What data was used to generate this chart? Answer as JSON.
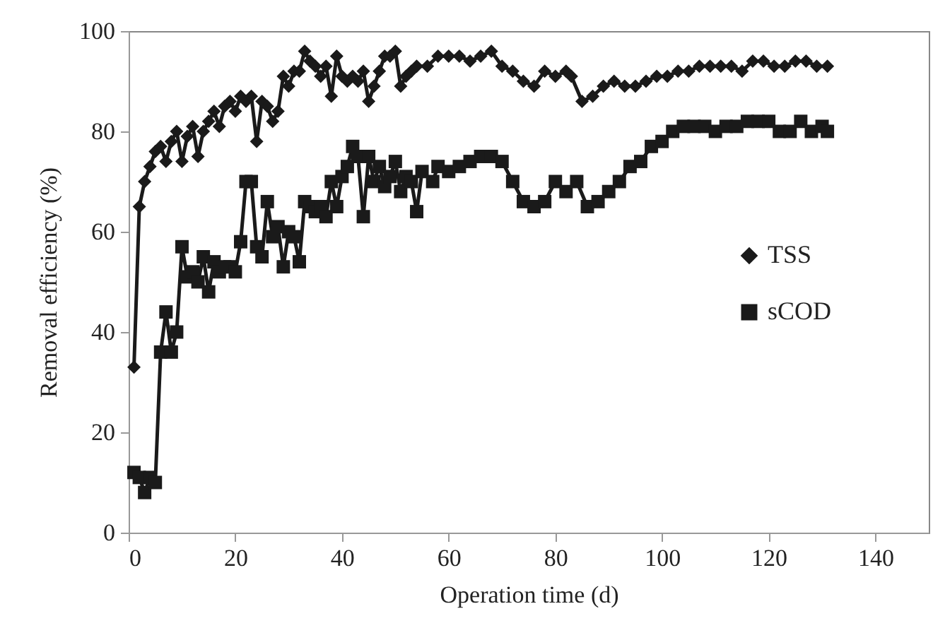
{
  "chart_data": {
    "type": "line",
    "xlabel": "Operation time (d)",
    "ylabel": "Removal efficiency (%)",
    "xlim": [
      0,
      150
    ],
    "xticks": [
      0,
      20,
      40,
      60,
      80,
      100,
      120,
      140
    ],
    "ylim": [
      0,
      100
    ],
    "yticks": [
      0,
      20,
      40,
      60,
      80,
      100
    ],
    "grid": false,
    "legend": "right",
    "line_style": "solid",
    "series": [
      {
        "name": "TSS",
        "color": "#1a1a1a",
        "marker": "diamond",
        "x": [
          1,
          2,
          3,
          4,
          5,
          6,
          7,
          8,
          9,
          10,
          11,
          12,
          13,
          14,
          15,
          16,
          17,
          18,
          19,
          20,
          21,
          22,
          23,
          24,
          25,
          26,
          27,
          28,
          29,
          30,
          31,
          32,
          33,
          34,
          35,
          36,
          37,
          38,
          39,
          40,
          41,
          42,
          43,
          44,
          45,
          46,
          47,
          48,
          49,
          50,
          51,
          52,
          53,
          54,
          56,
          58,
          60,
          62,
          64,
          66,
          68,
          70,
          72,
          74,
          76,
          78,
          80,
          82,
          83,
          85,
          87,
          89,
          91,
          93,
          95,
          97,
          99,
          101,
          103,
          105,
          107,
          109,
          111,
          113,
          115,
          117,
          119,
          121,
          123,
          125,
          127,
          129,
          131
        ],
        "values": [
          33,
          65,
          70,
          73,
          76,
          77,
          74,
          78,
          80,
          74,
          79,
          81,
          75,
          80,
          82,
          84,
          81,
          85,
          86,
          84,
          87,
          86,
          87,
          78,
          86,
          85,
          82,
          84,
          91,
          89,
          92,
          92,
          96,
          94,
          93,
          91,
          93,
          87,
          95,
          91,
          90,
          91,
          90,
          92,
          86,
          89,
          92,
          95,
          95,
          96,
          89,
          91,
          92,
          93,
          93,
          95,
          95,
          95,
          94,
          95,
          96,
          93,
          92,
          90,
          89,
          92,
          91,
          92,
          91,
          86,
          87,
          89,
          90,
          89,
          89,
          90,
          91,
          91,
          92,
          92,
          93,
          93,
          93,
          93,
          92,
          94,
          94,
          93,
          93,
          94,
          94,
          93,
          93
        ]
      },
      {
        "name": "sCOD",
        "color": "#1a1a1a",
        "marker": "square",
        "x": [
          1,
          2,
          3,
          4,
          5,
          6,
          7,
          8,
          9,
          10,
          11,
          12,
          13,
          14,
          15,
          16,
          17,
          18,
          19,
          20,
          21,
          22,
          23,
          24,
          25,
          26,
          27,
          28,
          29,
          30,
          31,
          32,
          33,
          34,
          35,
          36,
          37,
          38,
          39,
          40,
          41,
          42,
          43,
          44,
          45,
          46,
          47,
          48,
          49,
          50,
          51,
          52,
          53,
          54,
          55,
          57,
          58,
          60,
          62,
          64,
          66,
          68,
          70,
          72,
          74,
          76,
          78,
          80,
          82,
          84,
          86,
          88,
          90,
          92,
          94,
          96,
          98,
          100,
          102,
          104,
          106,
          108,
          110,
          112,
          114,
          116,
          118,
          120,
          122,
          124,
          126,
          128,
          130,
          131
        ],
        "values": [
          12,
          11,
          8,
          11,
          10,
          36,
          44,
          36,
          40,
          57,
          51,
          52,
          50,
          55,
          48,
          54,
          52,
          53,
          53,
          52,
          58,
          70,
          70,
          57,
          55,
          66,
          59,
          61,
          53,
          60,
          59,
          54,
          66,
          65,
          64,
          65,
          63,
          70,
          65,
          71,
          73,
          77,
          75,
          63,
          75,
          70,
          73,
          69,
          71,
          74,
          68,
          71,
          70,
          64,
          72,
          70,
          73,
          72,
          73,
          74,
          75,
          75,
          74,
          70,
          66,
          65,
          66,
          70,
          68,
          70,
          65,
          66,
          68,
          70,
          73,
          74,
          77,
          78,
          80,
          81,
          81,
          81,
          80,
          81,
          81,
          82,
          82,
          82,
          80,
          80,
          82,
          80,
          81,
          80
        ]
      }
    ]
  }
}
